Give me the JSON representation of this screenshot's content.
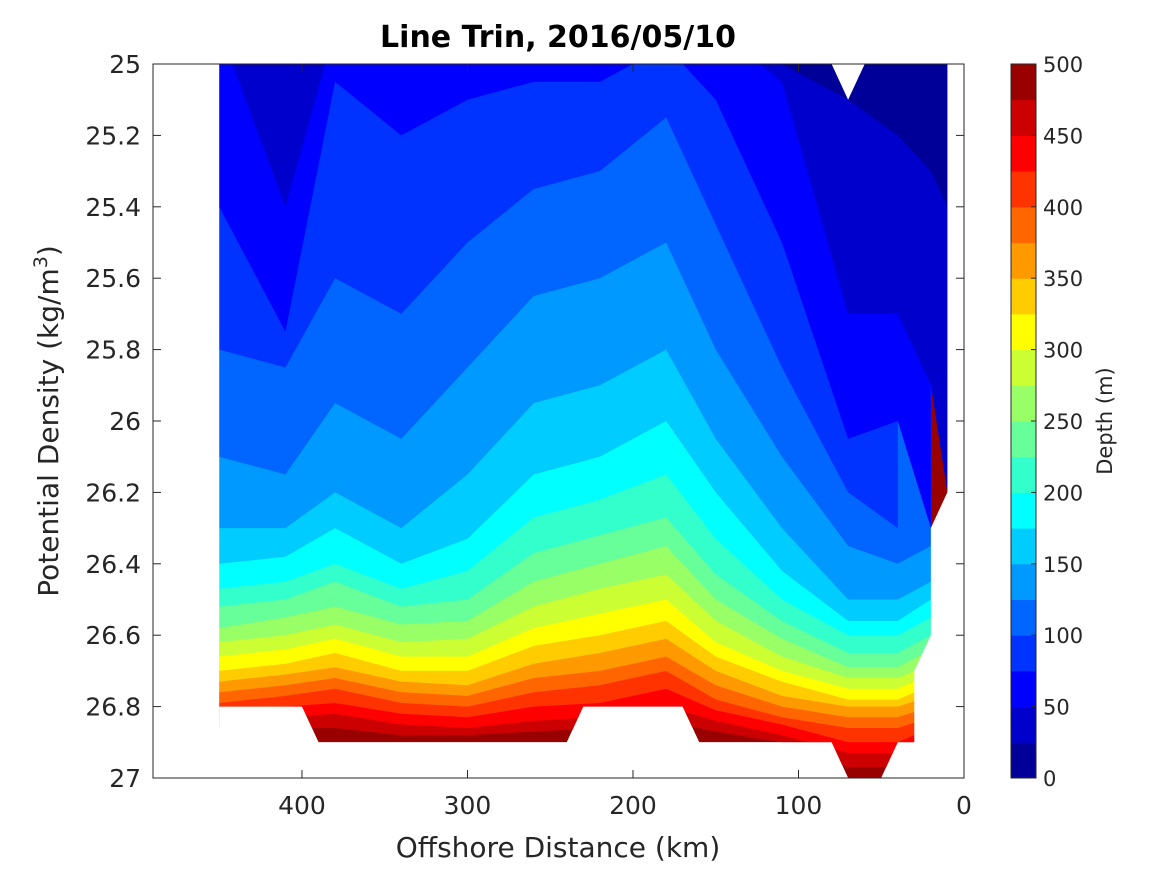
{
  "chart_data": {
    "type": "contour",
    "title": "Line Trin, 2016/05/10",
    "xlabel": "Offshore Distance (km)",
    "ylabel_text": "Potential Density (kg/m",
    "ylabel_sup": "3",
    "ylabel_close": ")",
    "xlim": [
      490,
      0
    ],
    "ylim": [
      25,
      27
    ],
    "y_reversed": true,
    "x_reversed": true,
    "xticks": [
      400,
      300,
      200,
      100,
      0
    ],
    "yticks": [
      25,
      25.2,
      25.4,
      25.6,
      25.8,
      26,
      26.2,
      26.4,
      26.6,
      26.8,
      27
    ],
    "ytick_labels": [
      "25",
      "25.2",
      "25.4",
      "25.6",
      "25.8",
      "26",
      "26.2",
      "26.4",
      "26.6",
      "26.8",
      "27"
    ],
    "colorbar": {
      "label": "Depth (m)",
      "range": [
        0,
        500
      ],
      "step": 25,
      "ticks": [
        0,
        50,
        100,
        150,
        200,
        250,
        300,
        350,
        400,
        450,
        500
      ],
      "colormap": "jet"
    },
    "levels": [
      0,
      25,
      50,
      75,
      100,
      125,
      150,
      175,
      200,
      225,
      250,
      275,
      300,
      325,
      350,
      375,
      400,
      425,
      450,
      475,
      500
    ],
    "x": [
      450,
      410,
      380,
      340,
      300,
      260,
      220,
      180,
      150,
      110,
      70,
      40,
      20,
      10
    ],
    "depth_contours": {
      "levels": [
        25,
        50,
        75,
        100,
        125,
        150,
        175,
        200,
        225,
        250,
        275,
        300,
        325,
        350,
        375,
        400,
        425,
        450,
        475
      ],
      "density": [
        [
          null,
          null,
          null,
          null,
          null,
          null,
          null,
          null,
          null,
          25.0,
          25.1,
          25.2,
          25.3,
          25.4
        ],
        [
          24.9,
          25.4,
          24.9,
          24.9,
          24.9,
          24.8,
          24.8,
          24.8,
          24.9,
          25.05,
          25.7,
          25.7,
          25.9,
          26.2
        ],
        [
          25.4,
          25.75,
          25.05,
          25.2,
          25.1,
          25.05,
          25.05,
          24.95,
          25.1,
          25.5,
          26.05,
          26.0,
          26.3,
          null
        ],
        [
          25.8,
          25.85,
          25.6,
          25.7,
          25.5,
          25.35,
          25.3,
          25.15,
          25.45,
          25.85,
          26.2,
          26.3,
          null,
          null
        ],
        [
          26.1,
          26.15,
          25.95,
          26.05,
          25.85,
          25.65,
          25.6,
          25.5,
          25.8,
          26.1,
          26.35,
          26.4,
          26.35,
          null
        ],
        [
          26.3,
          26.3,
          26.2,
          26.3,
          26.15,
          25.95,
          25.9,
          25.8,
          26.05,
          26.3,
          26.5,
          26.5,
          26.45,
          null
        ],
        [
          26.4,
          26.38,
          26.3,
          26.4,
          26.33,
          26.15,
          26.1,
          26.0,
          26.2,
          26.42,
          26.56,
          26.56,
          26.5,
          null
        ],
        [
          26.47,
          26.45,
          26.4,
          26.47,
          26.42,
          26.27,
          26.22,
          26.15,
          26.33,
          26.5,
          26.6,
          26.6,
          26.55,
          null
        ],
        [
          26.52,
          26.5,
          26.45,
          26.52,
          26.5,
          26.37,
          26.32,
          26.27,
          26.43,
          26.56,
          26.65,
          26.65,
          26.6,
          null
        ],
        [
          26.58,
          26.55,
          26.52,
          26.57,
          26.56,
          26.45,
          26.4,
          26.35,
          26.5,
          26.61,
          26.69,
          26.69,
          26.64,
          null
        ],
        [
          26.62,
          26.6,
          26.57,
          26.62,
          26.61,
          26.52,
          26.47,
          26.43,
          26.56,
          26.66,
          26.72,
          26.72,
          26.68,
          null
        ],
        [
          26.66,
          26.64,
          26.61,
          26.66,
          26.66,
          26.58,
          26.54,
          26.5,
          26.62,
          26.7,
          26.75,
          26.75,
          26.71,
          null
        ],
        [
          26.7,
          26.68,
          26.65,
          26.7,
          26.7,
          26.63,
          26.6,
          26.56,
          26.66,
          26.73,
          26.78,
          26.78,
          26.74,
          null
        ],
        [
          26.73,
          26.71,
          26.69,
          26.73,
          26.74,
          26.68,
          26.65,
          26.61,
          26.7,
          26.77,
          26.8,
          26.8,
          26.77,
          null
        ],
        [
          26.76,
          26.74,
          26.72,
          26.76,
          26.77,
          26.72,
          26.7,
          26.66,
          26.74,
          26.8,
          26.83,
          26.83,
          26.8,
          null
        ],
        [
          26.79,
          26.77,
          26.75,
          26.79,
          26.8,
          26.76,
          26.74,
          26.7,
          26.78,
          26.83,
          26.86,
          26.86,
          26.83,
          null
        ],
        [
          26.81,
          26.8,
          26.79,
          26.82,
          26.83,
          26.8,
          26.79,
          26.75,
          26.81,
          26.85,
          26.9,
          26.9,
          26.86,
          null
        ],
        [
          26.83,
          26.83,
          26.82,
          26.85,
          26.86,
          26.84,
          26.83,
          26.8,
          26.84,
          26.88,
          26.93,
          26.93,
          26.88,
          null
        ],
        [
          26.86,
          26.86,
          26.86,
          26.88,
          26.88,
          26.87,
          26.86,
          26.84,
          26.87,
          26.9,
          26.97,
          26.97,
          26.9,
          null
        ]
      ]
    },
    "data_extent": {
      "top_x": [
        450,
        10
      ],
      "bottom_boundary": [
        [
          450,
          26.8
        ],
        [
          400,
          26.8
        ],
        [
          390,
          26.9
        ],
        [
          240,
          26.9
        ],
        [
          230,
          26.8
        ],
        [
          170,
          26.8
        ],
        [
          160,
          26.9
        ],
        [
          80,
          26.9
        ],
        [
          70,
          27.0
        ],
        [
          50,
          27.0
        ],
        [
          40,
          26.9
        ],
        [
          30,
          26.9
        ],
        [
          30,
          26.7
        ],
        [
          20,
          26.6
        ],
        [
          20,
          26.3
        ],
        [
          10,
          26.2
        ]
      ],
      "top_gap": [
        [
          80,
          25.0
        ],
        [
          70,
          25.1
        ],
        [
          60,
          25.0
        ]
      ]
    }
  }
}
